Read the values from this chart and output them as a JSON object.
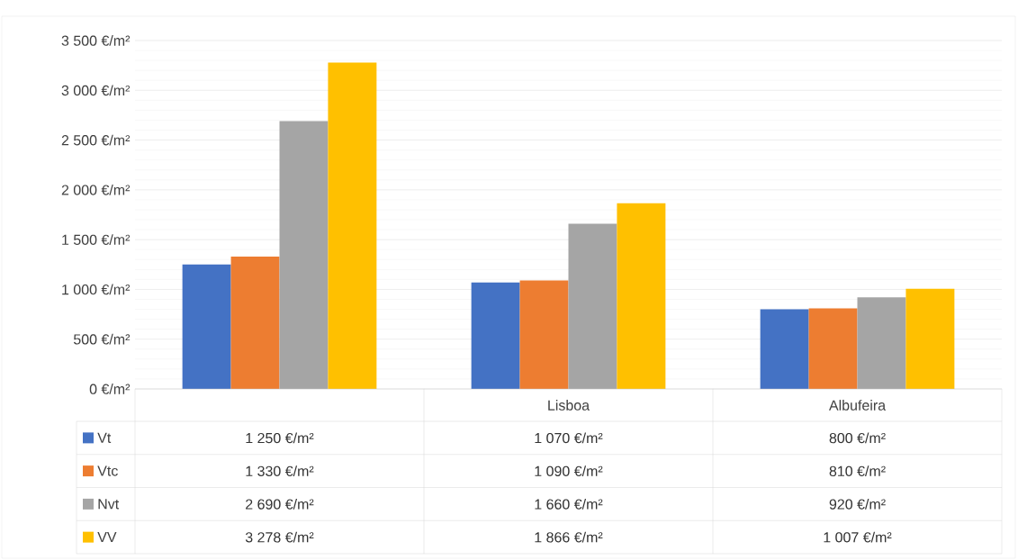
{
  "chart_data": {
    "type": "bar",
    "categories": [
      null,
      "Lisboa",
      "Albufeira"
    ],
    "series": [
      {
        "name": "Vt",
        "color": "#4472c4",
        "values": [
          1250,
          1070,
          800
        ],
        "value_labels": [
          "1 250 €/m²",
          "1 070 €/m²",
          "800 €/m²"
        ]
      },
      {
        "name": "Vtc",
        "color": "#ed7d31",
        "values": [
          1330,
          1090,
          810
        ],
        "value_labels": [
          "1 330 €/m²",
          "1 090 €/m²",
          "810 €/m²"
        ]
      },
      {
        "name": "Nvt",
        "color": "#a5a5a5",
        "values": [
          2690,
          1660,
          920
        ],
        "value_labels": [
          "2 690 €/m²",
          "1 660 €/m²",
          "920 €/m²"
        ]
      },
      {
        "name": "VV",
        "color": "#ffc000",
        "values": [
          3278,
          1866,
          1007
        ],
        "value_labels": [
          "3 278 €/m²",
          "1 866 €/m²",
          "1 007 €/m²"
        ]
      }
    ],
    "ylim": [
      0,
      3500
    ],
    "yticks": [
      {
        "value": 0,
        "label": "0 €/m²"
      },
      {
        "value": 500,
        "label": "500 €/m²"
      },
      {
        "value": 1000,
        "label": "1 000 €/m²"
      },
      {
        "value": 1500,
        "label": "1 500 €/m²"
      },
      {
        "value": 2000,
        "label": "2 000 €/m²"
      },
      {
        "value": 2500,
        "label": "2 500 €/m²"
      },
      {
        "value": 3000,
        "label": "3 000 €/m²"
      },
      {
        "value": 3500,
        "label": "3 500 €/m²"
      }
    ],
    "grid": true,
    "legend": "bottom"
  }
}
